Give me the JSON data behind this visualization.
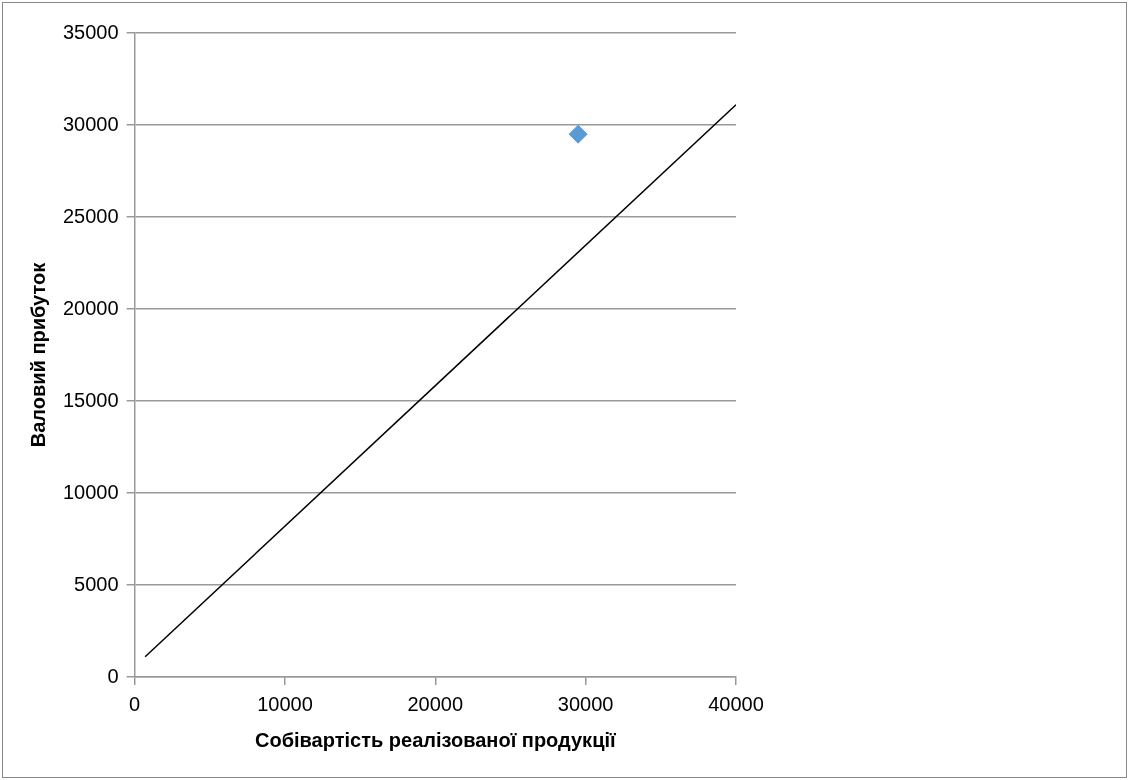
{
  "chart_data": {
    "type": "scatter",
    "xlabel": "Собівартість реалізованої продукції",
    "ylabel": "Валовий прибуток",
    "xlim": [
      0,
      40000
    ],
    "xticks": [
      0,
      10000,
      20000,
      30000,
      40000
    ],
    "ylim": [
      0,
      35000
    ],
    "yticks": [
      0,
      5000,
      10000,
      15000,
      20000,
      25000,
      30000,
      35000
    ],
    "grid": "y",
    "marker": "diamond",
    "legend": false,
    "series": [
      {
        "color": "#5b9bd5",
        "x": [
          29500
        ],
        "values": [
          29500
        ]
      },
      {
        "type": "line",
        "color": "#000000",
        "marker": "none",
        "x": [
          700,
          40000
        ],
        "values": [
          1100,
          31100
        ]
      }
    ]
  }
}
